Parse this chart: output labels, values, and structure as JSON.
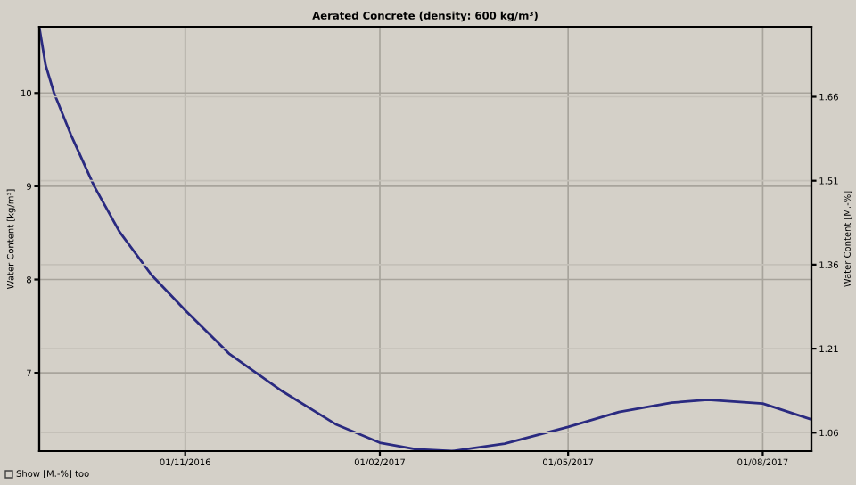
{
  "chart_data": {
    "type": "line",
    "title": "Aerated Concrete (density: 600 kg/m³)",
    "ylabel": "Water Content [kg/m³]",
    "y2label": "Water Content [M.-%]",
    "x": [
      "2016-08-24",
      "2016-08-27",
      "2016-08-31",
      "2016-09-08",
      "2016-09-19",
      "2016-10-01",
      "2016-10-16",
      "2016-11-01",
      "2016-11-22",
      "2016-12-17",
      "2017-01-11",
      "2017-02-01",
      "2017-02-18",
      "2017-03-07",
      "2017-04-01",
      "2017-05-01",
      "2017-05-25",
      "2017-06-19",
      "2017-07-06",
      "2017-08-01",
      "2017-08-24"
    ],
    "series": [
      {
        "color": "#2a2a80",
        "values": [
          10.71,
          10.3,
          10.0,
          9.55,
          9.0,
          8.51,
          8.05,
          7.67,
          7.2,
          6.8,
          6.45,
          6.25,
          6.18,
          6.16,
          6.24,
          6.42,
          6.58,
          6.68,
          6.71,
          6.67,
          6.5
        ]
      }
    ],
    "xlim": [
      "2016-08-24",
      "2017-08-24"
    ],
    "xticks": [
      {
        "value": "2016-11-01",
        "label": "01/11/2016"
      },
      {
        "value": "2017-02-01",
        "label": "01/02/2017"
      },
      {
        "value": "2017-05-01",
        "label": "01/05/2017"
      },
      {
        "value": "2017-08-01",
        "label": "01/08/2017"
      }
    ],
    "ylim": [
      6.16,
      10.71
    ],
    "yticks": [
      7,
      8,
      9,
      10
    ],
    "y2lim": [
      1.027,
      1.785
    ],
    "y2ticks": [
      1.06,
      1.21,
      1.36,
      1.51,
      1.66
    ],
    "grid": true,
    "legend": false,
    "marker": "none",
    "line_style": "solid",
    "annotations": [
      "Show [M.-%] too"
    ]
  }
}
